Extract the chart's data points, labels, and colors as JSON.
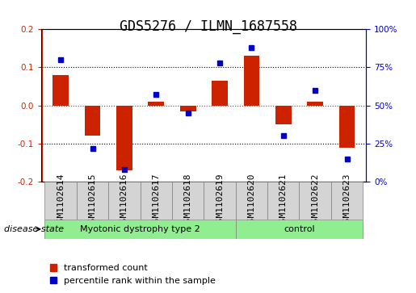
{
  "title": "GDS5276 / ILMN_1687558",
  "samples": [
    "GSM1102614",
    "GSM1102615",
    "GSM1102616",
    "GSM1102617",
    "GSM1102618",
    "GSM1102619",
    "GSM1102620",
    "GSM1102621",
    "GSM1102622",
    "GSM1102623"
  ],
  "red_values": [
    0.08,
    -0.08,
    -0.17,
    0.01,
    -0.015,
    0.065,
    0.13,
    -0.05,
    0.01,
    -0.11
  ],
  "blue_values": [
    80,
    22,
    8,
    57,
    45,
    78,
    88,
    30,
    60,
    15
  ],
  "groups": [
    {
      "label": "Myotonic dystrophy type 2",
      "start": 0,
      "end": 6,
      "color": "#90EE90"
    },
    {
      "label": "control",
      "start": 6,
      "end": 10,
      "color": "#90EE90"
    }
  ],
  "ylim_left": [
    -0.2,
    0.2
  ],
  "ylim_right": [
    0,
    100
  ],
  "yticks_left": [
    -0.2,
    -0.1,
    0.0,
    0.1,
    0.2
  ],
  "yticks_right": [
    0,
    25,
    50,
    75,
    100
  ],
  "hlines": [
    0.1,
    0.0,
    -0.1
  ],
  "red_color": "#CC2200",
  "blue_color": "#0000CC",
  "bar_width": 0.5,
  "title_fontsize": 12,
  "label_fontsize": 8,
  "tick_fontsize": 7.5,
  "legend_fontsize": 8,
  "disease_state_label": "disease state",
  "legend_items": [
    {
      "label": "transformed count",
      "color": "#CC2200",
      "marker": "s"
    },
    {
      "label": "percentile rank within the sample",
      "color": "#0000CC",
      "marker": "s"
    }
  ]
}
